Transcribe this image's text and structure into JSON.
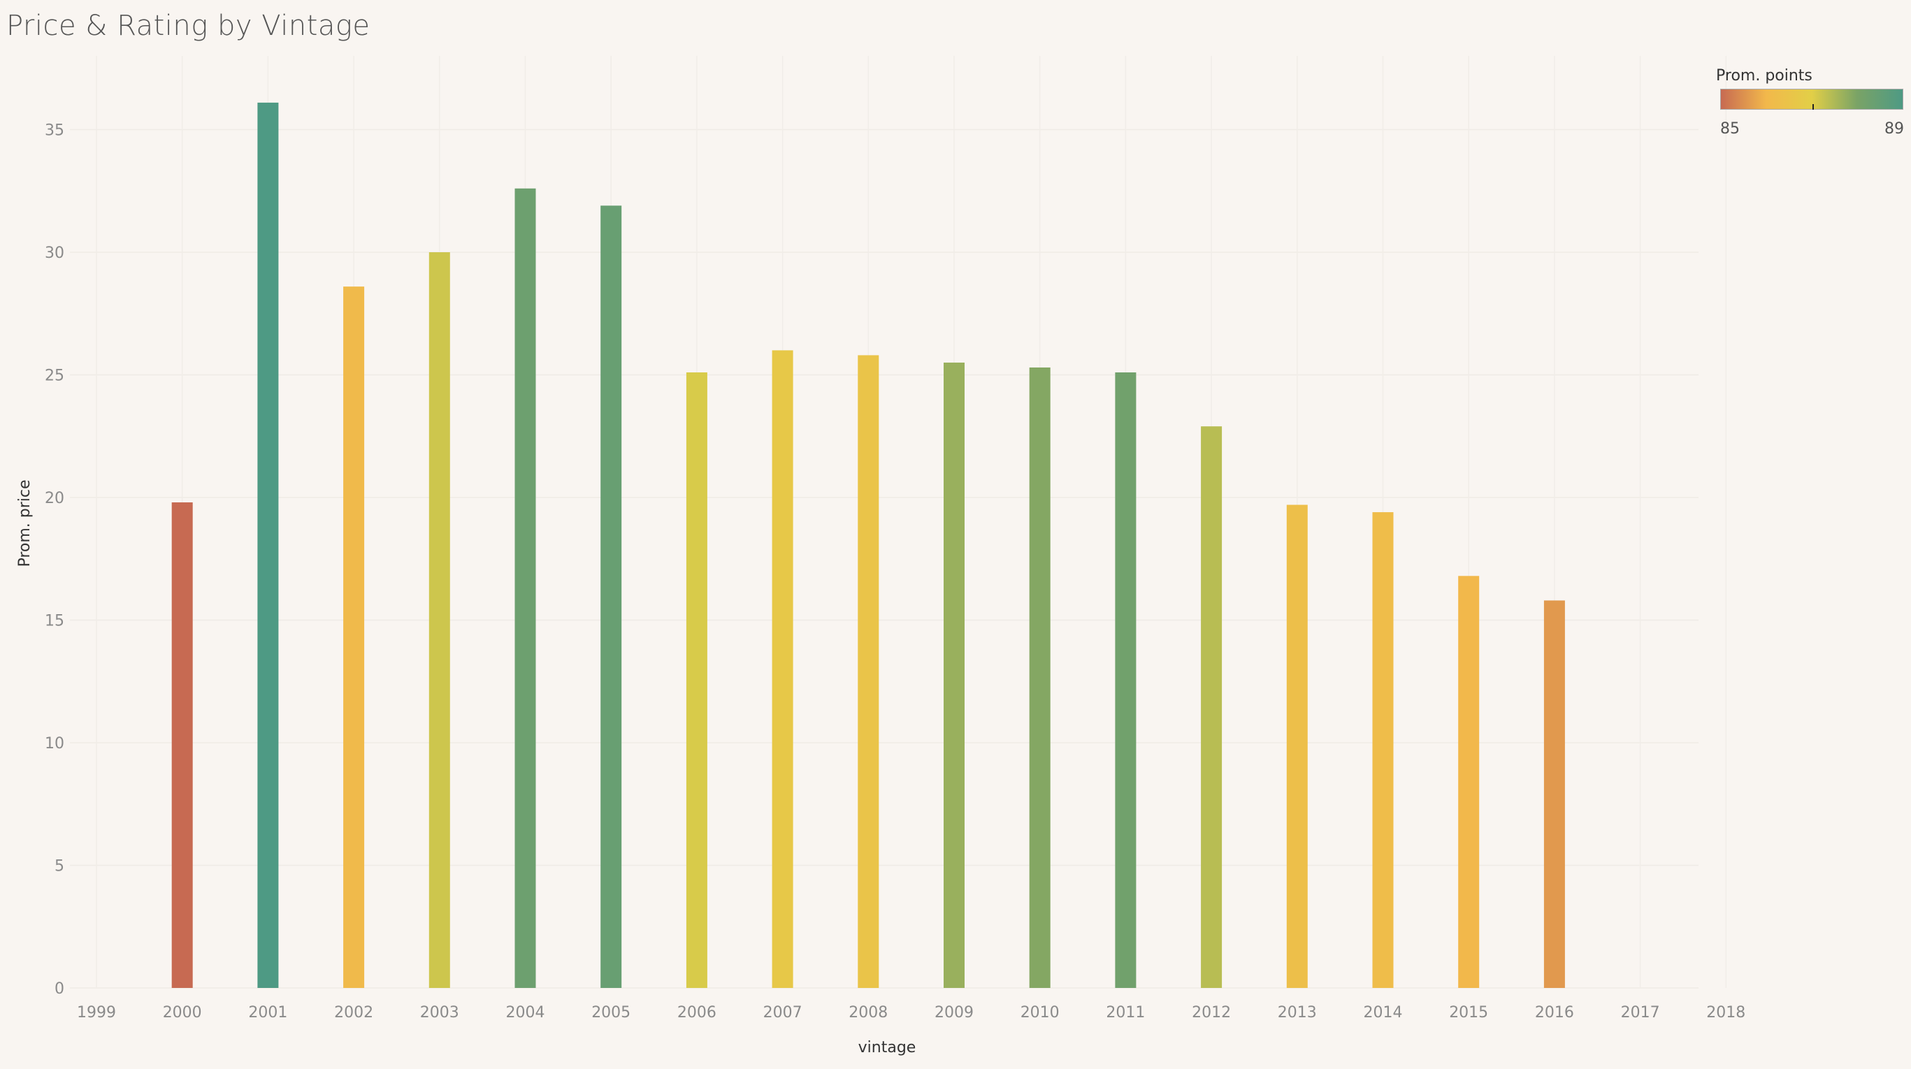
{
  "chart_data": {
    "type": "bar",
    "title": "Price & Rating by Vintage",
    "xlabel": "vintage",
    "ylabel": "Prom. price",
    "ylim": [
      0,
      37
    ],
    "yticks": [
      0,
      5,
      10,
      15,
      20,
      25,
      30,
      35
    ],
    "x_axis_ticks": [
      "1999",
      "2000",
      "2001",
      "2002",
      "2003",
      "2004",
      "2005",
      "2006",
      "2007",
      "2008",
      "2009",
      "2010",
      "2011",
      "2012",
      "2013",
      "2014",
      "2015",
      "2016",
      "2017",
      "2018"
    ],
    "categories": [
      "2000",
      "2001",
      "2002",
      "2003",
      "2004",
      "2005",
      "2006",
      "2007",
      "2008",
      "2009",
      "2010",
      "2011",
      "2012",
      "2013",
      "2014",
      "2015",
      "2016"
    ],
    "values": [
      19.8,
      36.1,
      28.6,
      30.0,
      32.6,
      31.9,
      25.1,
      26.0,
      25.8,
      25.5,
      25.3,
      25.1,
      22.9,
      19.7,
      19.4,
      16.8,
      15.8
    ],
    "color_values": [
      85.0,
      89.0,
      86.1,
      87.2,
      88.3,
      88.4,
      87.1,
      86.7,
      86.5,
      87.7,
      87.9,
      88.2,
      87.4,
      86.3,
      86.2,
      86.0,
      85.6
    ],
    "grid": true,
    "legend": {
      "title": "Prom. points",
      "min_label": "85",
      "max_label": "89",
      "min": 85,
      "max": 89,
      "placement": "top-right",
      "gradient_colors": [
        "#c76a52",
        "#f2b84b",
        "#e2cf47",
        "#7aa366",
        "#4e9a84"
      ]
    }
  }
}
